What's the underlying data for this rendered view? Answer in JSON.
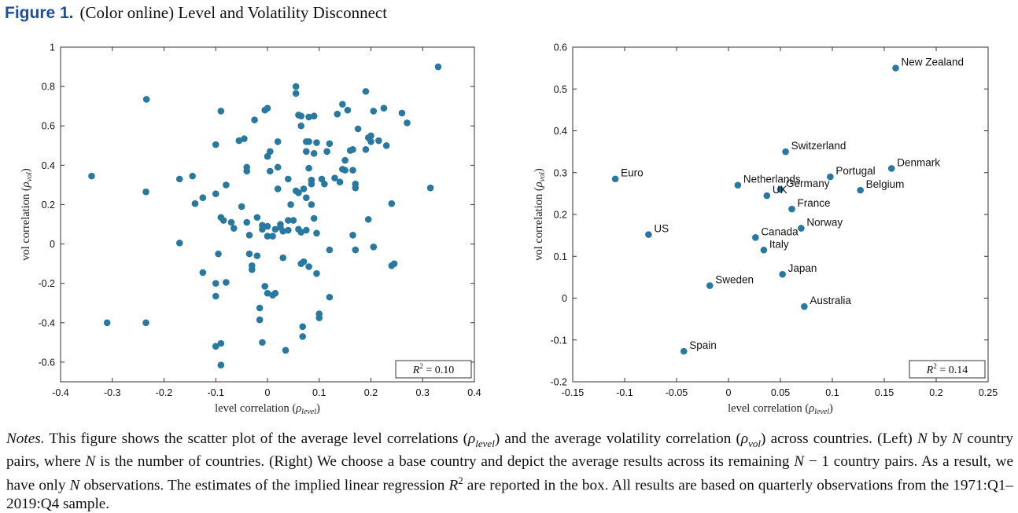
{
  "figure": {
    "label": "Figure 1.",
    "title": "(Color online) Level and Volatility Disconnect",
    "notes": "Notes. This figure shows the scatter plot of the average level correlations (ρlevel) and the average volatility correlation (ρvol) across countries. (Left) N by N country pairs, where N is the number of countries. (Right) We choose a base country and depict the average results across its remaining N − 1 country pairs. As a result, we have only N observations. The estimates of the implied linear regression R2 are reported in the box. All results are based on quarterly observations from the 1971:Q1–2019:Q4 sample."
  },
  "chart_data": [
    {
      "type": "scatter",
      "xlabel": "level correlation (ρlevel)",
      "ylabel": "vol correlation (ρvol)",
      "xlim": [
        -0.4,
        0.4
      ],
      "ylim": [
        -0.7,
        1.0
      ],
      "xticks": [
        -0.4,
        -0.3,
        -0.2,
        -0.1,
        0,
        0.1,
        0.2,
        0.3,
        0.4
      ],
      "yticks": [
        -0.6,
        -0.4,
        -0.2,
        0,
        0.2,
        0.4,
        0.6,
        0.8,
        1
      ],
      "xtick_labels": [
        "-0.4",
        "-0.3",
        "-0.2",
        "-0.1",
        "0",
        "0.1",
        "0.2",
        "0.3",
        "0.4"
      ],
      "ytick_labels": [
        "-0.6",
        "-0.4",
        "-0.2",
        "0",
        "0.2",
        "0.4",
        "0.6",
        "0.8",
        "1"
      ],
      "annotation": "R2 = 0.10",
      "marker_color": "#2878a0",
      "points": [
        [
          0.33,
          0.9
        ],
        [
          -0.234,
          0.735
        ],
        [
          -0.34,
          0.345
        ],
        [
          -0.31,
          -0.4
        ],
        [
          -0.235,
          -0.4
        ],
        [
          -0.235,
          0.265
        ],
        [
          -0.17,
          0.33
        ],
        [
          -0.17,
          0.005
        ],
        [
          -0.145,
          0.345
        ],
        [
          -0.14,
          0.205
        ],
        [
          -0.125,
          0.235
        ],
        [
          -0.125,
          -0.145
        ],
        [
          -0.1,
          0.505
        ],
        [
          -0.1,
          0.255
        ],
        [
          -0.1,
          -0.2
        ],
        [
          -0.1,
          -0.265
        ],
        [
          -0.1,
          -0.52
        ],
        [
          -0.09,
          -0.505
        ],
        [
          -0.09,
          -0.615
        ],
        [
          -0.095,
          -0.05
        ],
        [
          -0.09,
          0.675
        ],
        [
          -0.09,
          0.135
        ],
        [
          -0.085,
          0.12
        ],
        [
          -0.08,
          0.3
        ],
        [
          -0.08,
          -0.195
        ],
        [
          -0.07,
          0.11
        ],
        [
          -0.065,
          0.08
        ],
        [
          -0.055,
          0.525
        ],
        [
          -0.05,
          0.19
        ],
        [
          -0.045,
          0.535
        ],
        [
          -0.04,
          0.39
        ],
        [
          -0.04,
          0.37
        ],
        [
          -0.04,
          0.11
        ],
        [
          -0.035,
          0.045
        ],
        [
          -0.035,
          -0.05
        ],
        [
          -0.03,
          -0.13
        ],
        [
          -0.03,
          -0.11
        ],
        [
          -0.025,
          0.63
        ],
        [
          -0.02,
          0.135
        ],
        [
          -0.02,
          -0.06
        ],
        [
          -0.015,
          -0.325
        ],
        [
          -0.015,
          -0.385
        ],
        [
          -0.01,
          0.095
        ],
        [
          -0.01,
          0.075
        ],
        [
          -0.005,
          0.68
        ],
        [
          0.0,
          0.69
        ],
        [
          0.0,
          0.445
        ],
        [
          0.0,
          0.09
        ],
        [
          0.0,
          0.04
        ],
        [
          -0.005,
          -0.215
        ],
        [
          0.0,
          -0.25
        ],
        [
          -0.01,
          -0.5
        ],
        [
          0.005,
          0.47
        ],
        [
          0.005,
          0.37
        ],
        [
          0.01,
          0.04
        ],
        [
          0.01,
          -0.26
        ],
        [
          0.015,
          0.075
        ],
        [
          0.015,
          -0.25
        ],
        [
          0.02,
          0.52
        ],
        [
          0.02,
          0.39
        ],
        [
          0.02,
          0.28
        ],
        [
          0.025,
          0.085
        ],
        [
          0.025,
          0.1
        ],
        [
          0.03,
          0.065
        ],
        [
          0.03,
          -0.07
        ],
        [
          0.035,
          -0.54
        ],
        [
          0.04,
          0.33
        ],
        [
          0.04,
          0.12
        ],
        [
          0.04,
          0.07
        ],
        [
          0.045,
          0.2
        ],
        [
          0.05,
          0.12
        ],
        [
          0.055,
          0.8
        ],
        [
          0.055,
          0.765
        ],
        [
          0.055,
          0.27
        ],
        [
          0.06,
          0.655
        ],
        [
          0.06,
          0.26
        ],
        [
          0.06,
          0.075
        ],
        [
          0.065,
          0.65
        ],
        [
          0.065,
          0.6
        ],
        [
          0.065,
          0.06
        ],
        [
          0.065,
          -0.1
        ],
        [
          0.068,
          -0.42
        ],
        [
          0.068,
          -0.47
        ],
        [
          0.07,
          0.28
        ],
        [
          0.07,
          -0.09
        ],
        [
          0.075,
          0.52
        ],
        [
          0.075,
          0.47
        ],
        [
          0.075,
          0.235
        ],
        [
          0.075,
          0.07
        ],
        [
          0.08,
          0.645
        ],
        [
          0.08,
          0.52
        ],
        [
          0.08,
          0.385
        ],
        [
          0.08,
          -0.115
        ],
        [
          0.085,
          0.325
        ],
        [
          0.085,
          0.305
        ],
        [
          0.085,
          0.2
        ],
        [
          0.09,
          0.65
        ],
        [
          0.09,
          0.46
        ],
        [
          0.09,
          0.13
        ],
        [
          0.095,
          0.515
        ],
        [
          0.095,
          0.055
        ],
        [
          0.095,
          -0.15
        ],
        [
          0.1,
          -0.355
        ],
        [
          0.1,
          -0.375
        ],
        [
          0.105,
          0.33
        ],
        [
          0.11,
          0.305
        ],
        [
          0.115,
          0.47
        ],
        [
          0.12,
          0.51
        ],
        [
          0.12,
          -0.03
        ],
        [
          0.12,
          -0.27
        ],
        [
          0.13,
          0.335
        ],
        [
          0.135,
          0.66
        ],
        [
          0.14,
          0.315
        ],
        [
          0.145,
          0.71
        ],
        [
          0.145,
          0.38
        ],
        [
          0.15,
          0.375
        ],
        [
          0.15,
          0.425
        ],
        [
          0.155,
          0.68
        ],
        [
          0.16,
          0.475
        ],
        [
          0.165,
          0.48
        ],
        [
          0.165,
          0.375
        ],
        [
          0.165,
          0.045
        ],
        [
          0.17,
          0.305
        ],
        [
          0.17,
          0.285
        ],
        [
          0.17,
          -0.03
        ],
        [
          0.175,
          0.585
        ],
        [
          0.19,
          0.775
        ],
        [
          0.19,
          0.48
        ],
        [
          0.195,
          0.54
        ],
        [
          0.195,
          0.125
        ],
        [
          0.2,
          0.55
        ],
        [
          0.2,
          0.52
        ],
        [
          0.205,
          -0.015
        ],
        [
          0.205,
          0.675
        ],
        [
          0.215,
          0.525
        ],
        [
          0.225,
          0.69
        ],
        [
          0.23,
          0.5
        ],
        [
          0.24,
          0.205
        ],
        [
          0.24,
          -0.11
        ],
        [
          0.245,
          -0.1
        ],
        [
          0.26,
          0.665
        ],
        [
          0.27,
          0.615
        ],
        [
          0.315,
          0.285
        ]
      ]
    },
    {
      "type": "scatter",
      "xlabel": "level correlation (ρlevel)",
      "ylabel": "vol correlation (ρvol)",
      "xlim": [
        -0.15,
        0.25
      ],
      "ylim": [
        -0.2,
        0.6
      ],
      "xticks": [
        -0.15,
        -0.1,
        -0.05,
        0,
        0.05,
        0.1,
        0.15,
        0.2,
        0.25
      ],
      "yticks": [
        -0.2,
        -0.1,
        0,
        0.1,
        0.2,
        0.3,
        0.4,
        0.5,
        0.6
      ],
      "xtick_labels": [
        "-0.15",
        "-0.1",
        "-0.05",
        "0",
        "0.05",
        "0.1",
        "0.15",
        "0.2",
        "0.25"
      ],
      "ytick_labels": [
        "-0.2",
        "-0.1",
        "0",
        "0.1",
        "0.2",
        "0.3",
        "0.4",
        "0.5",
        "0.6"
      ],
      "annotation": "R2 = 0.14",
      "marker_color": "#2878a0",
      "points": [
        {
          "label": "New Zealand",
          "x": 0.161,
          "y": 0.55
        },
        {
          "label": "Switzerland",
          "x": 0.055,
          "y": 0.35
        },
        {
          "label": "Denmark",
          "x": 0.157,
          "y": 0.31
        },
        {
          "label": "Euro",
          "x": -0.109,
          "y": 0.285
        },
        {
          "label": "Portugal",
          "x": 0.098,
          "y": 0.29
        },
        {
          "label": "Netherlands",
          "x": 0.009,
          "y": 0.27
        },
        {
          "label": "Germany",
          "x": 0.05,
          "y": 0.26
        },
        {
          "label": "UK",
          "x": 0.037,
          "y": 0.245
        },
        {
          "label": "Belgium",
          "x": 0.127,
          "y": 0.258
        },
        {
          "label": "France",
          "x": 0.061,
          "y": 0.213
        },
        {
          "label": "Norway",
          "x": 0.07,
          "y": 0.167
        },
        {
          "label": "US",
          "x": -0.077,
          "y": 0.152
        },
        {
          "label": "Canada",
          "x": 0.026,
          "y": 0.145
        },
        {
          "label": "Italy",
          "x": 0.034,
          "y": 0.115
        },
        {
          "label": "Japan",
          "x": 0.052,
          "y": 0.057
        },
        {
          "label": "Sweden",
          "x": -0.018,
          "y": 0.03
        },
        {
          "label": "Australia",
          "x": 0.073,
          "y": -0.02
        },
        {
          "label": "Spain",
          "x": -0.043,
          "y": -0.127
        }
      ]
    }
  ]
}
